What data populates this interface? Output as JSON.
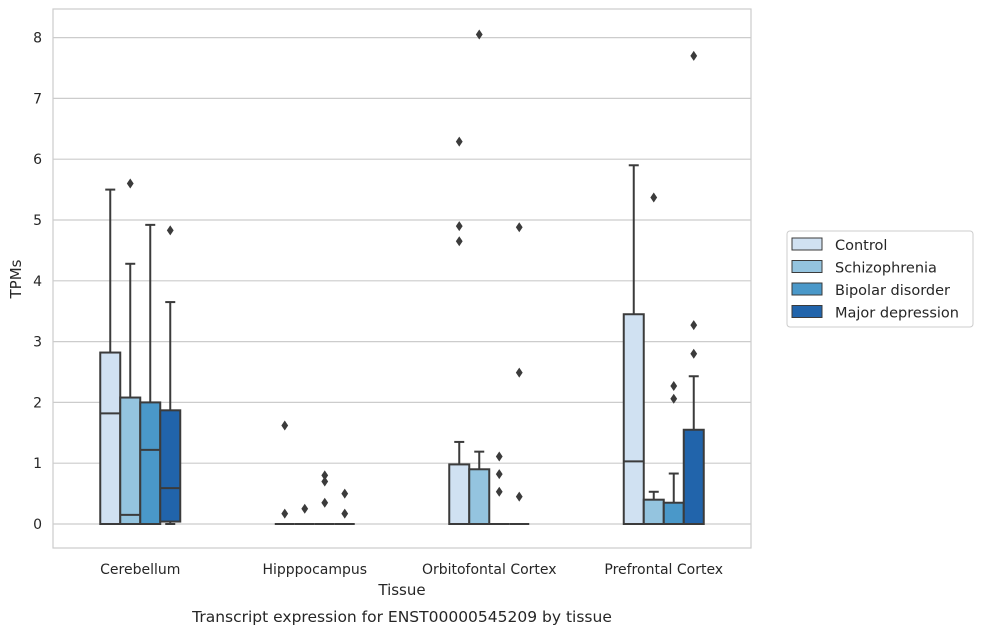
{
  "caption": "Transcript expression for ENST00000545209 by tissue",
  "chart_data": {
    "type": "box",
    "xlabel": "Tissue",
    "ylabel": "TPMs",
    "ylim": [
      -0.4,
      8.5
    ],
    "yticks": [
      0,
      1,
      2,
      3,
      4,
      5,
      6,
      7,
      8
    ],
    "grid": "horizontal",
    "legend_position": "right",
    "categories": [
      "Cerebellum",
      "Hipppocampus",
      "Orbitofontal Cortex",
      "Prefrontal Cortex"
    ],
    "series": [
      {
        "name": "Control",
        "color": "#d0e1f2",
        "boxes": [
          {
            "whislo": 0,
            "q1": 0,
            "med": 1.82,
            "q3": 2.82,
            "whishi": 5.5,
            "fliers": []
          },
          {
            "whislo": 0,
            "q1": 0,
            "med": 0,
            "q3": 0,
            "whishi": 0,
            "fliers": [
              1.62,
              0.17
            ]
          },
          {
            "whislo": 0,
            "q1": 0,
            "med": 0,
            "q3": 0.98,
            "whishi": 1.35,
            "fliers": [
              6.29,
              4.9,
              4.65
            ]
          },
          {
            "whislo": 0,
            "q1": 0,
            "med": 1.03,
            "q3": 3.45,
            "whishi": 5.9,
            "fliers": []
          }
        ]
      },
      {
        "name": "Schizophrenia",
        "color": "#94c4df",
        "boxes": [
          {
            "whislo": 0,
            "q1": 0,
            "med": 0.15,
            "q3": 2.08,
            "whishi": 4.28,
            "fliers": [
              5.6
            ]
          },
          {
            "whislo": 0,
            "q1": 0,
            "med": 0,
            "q3": 0,
            "whishi": 0,
            "fliers": [
              0.25
            ]
          },
          {
            "whislo": 0,
            "q1": 0,
            "med": 0,
            "q3": 0.9,
            "whishi": 1.19,
            "fliers": [
              8.05
            ]
          },
          {
            "whislo": 0,
            "q1": 0,
            "med": 0,
            "q3": 0.4,
            "whishi": 0.53,
            "fliers": [
              5.37
            ]
          }
        ]
      },
      {
        "name": "Bipolar disorder",
        "color": "#4a98c9",
        "boxes": [
          {
            "whislo": 0,
            "q1": 0,
            "med": 1.22,
            "q3": 2.0,
            "whishi": 4.92,
            "fliers": []
          },
          {
            "whislo": 0,
            "q1": 0,
            "med": 0,
            "q3": 0,
            "whishi": 0,
            "fliers": [
              0.8,
              0.7,
              0.35
            ]
          },
          {
            "whislo": 0,
            "q1": 0,
            "med": 0,
            "q3": 0,
            "whishi": 0,
            "fliers": [
              1.11,
              0.82,
              0.53
            ]
          },
          {
            "whislo": 0,
            "q1": 0,
            "med": 0,
            "q3": 0.35,
            "whishi": 0.83,
            "fliers": [
              2.27,
              2.06
            ]
          }
        ]
      },
      {
        "name": "Major depression",
        "color": "#2164ab",
        "boxes": [
          {
            "whislo": 0,
            "q1": 0.04,
            "med": 0.59,
            "q3": 1.87,
            "whishi": 3.65,
            "fliers": [
              4.83
            ]
          },
          {
            "whislo": 0,
            "q1": 0,
            "med": 0,
            "q3": 0,
            "whishi": 0,
            "fliers": [
              0.5,
              0.17
            ]
          },
          {
            "whislo": 0,
            "q1": 0,
            "med": 0,
            "q3": 0,
            "whishi": 0,
            "fliers": [
              4.88,
              2.49,
              0.45
            ]
          },
          {
            "whislo": 0,
            "q1": 0,
            "med": 0,
            "q3": 1.55,
            "whishi": 2.43,
            "fliers": [
              7.7,
              3.27,
              2.8
            ]
          }
        ]
      }
    ]
  }
}
